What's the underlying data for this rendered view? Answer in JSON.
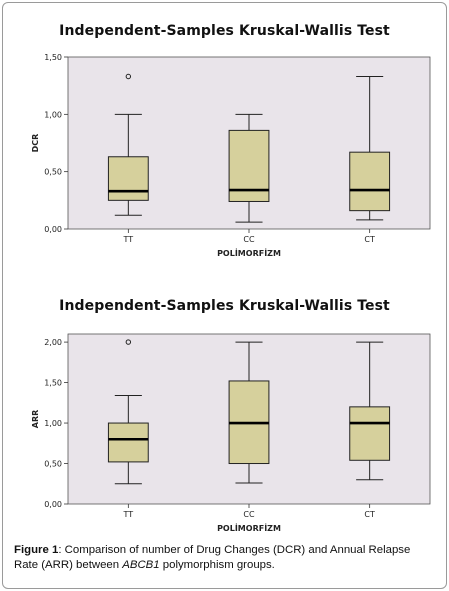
{
  "chart_data": [
    {
      "type": "box",
      "title": "Independent-Samples Kruskal-Wallis Test",
      "xlabel": "POLİMORFİZM",
      "ylabel": "DCR",
      "categories": [
        "TT",
        "CC",
        "CT"
      ],
      "yticks": [
        "0,00",
        "0,50",
        "1,00",
        "1,50"
      ],
      "ylim": [
        0,
        1.5
      ],
      "boxes": [
        {
          "category": "TT",
          "min": 0.12,
          "q1": 0.25,
          "median": 0.33,
          "q3": 0.63,
          "max": 1.0,
          "outliers": [
            1.33
          ]
        },
        {
          "category": "CC",
          "min": 0.06,
          "q1": 0.24,
          "median": 0.34,
          "q3": 0.86,
          "max": 1.0,
          "outliers": []
        },
        {
          "category": "CT",
          "min": 0.08,
          "q1": 0.16,
          "median": 0.34,
          "q3": 0.67,
          "max": 1.33,
          "outliers": []
        }
      ],
      "box_color": "#d6d09c",
      "plot_background": "#e9e4ea",
      "grid": false
    },
    {
      "type": "box",
      "title": "Independent-Samples Kruskal-Wallis Test",
      "xlabel": "POLİMORFİZM",
      "ylabel": "ARR",
      "categories": [
        "TT",
        "CC",
        "CT"
      ],
      "yticks": [
        "0,00",
        "0,50",
        "1,00",
        "1,50",
        "2,00"
      ],
      "ylim": [
        0,
        2.1
      ],
      "boxes": [
        {
          "category": "TT",
          "min": 0.25,
          "q1": 0.52,
          "median": 0.8,
          "q3": 1.0,
          "max": 1.34,
          "outliers": [
            2.0
          ]
        },
        {
          "category": "CC",
          "min": 0.26,
          "q1": 0.5,
          "median": 1.0,
          "q3": 1.52,
          "max": 2.0,
          "outliers": []
        },
        {
          "category": "CT",
          "min": 0.3,
          "q1": 0.54,
          "median": 1.0,
          "q3": 1.2,
          "max": 2.0,
          "outliers": []
        }
      ],
      "box_color": "#d6d09c",
      "plot_background": "#e9e4ea",
      "grid": false
    }
  ],
  "caption": {
    "label": "Figure 1",
    "text_before": ": Comparison of number of Drug Changes (DCR) and Annual Relapse Rate (ARR) between ",
    "italic": "ABCB1",
    "text_after": " polymorphism groups."
  }
}
